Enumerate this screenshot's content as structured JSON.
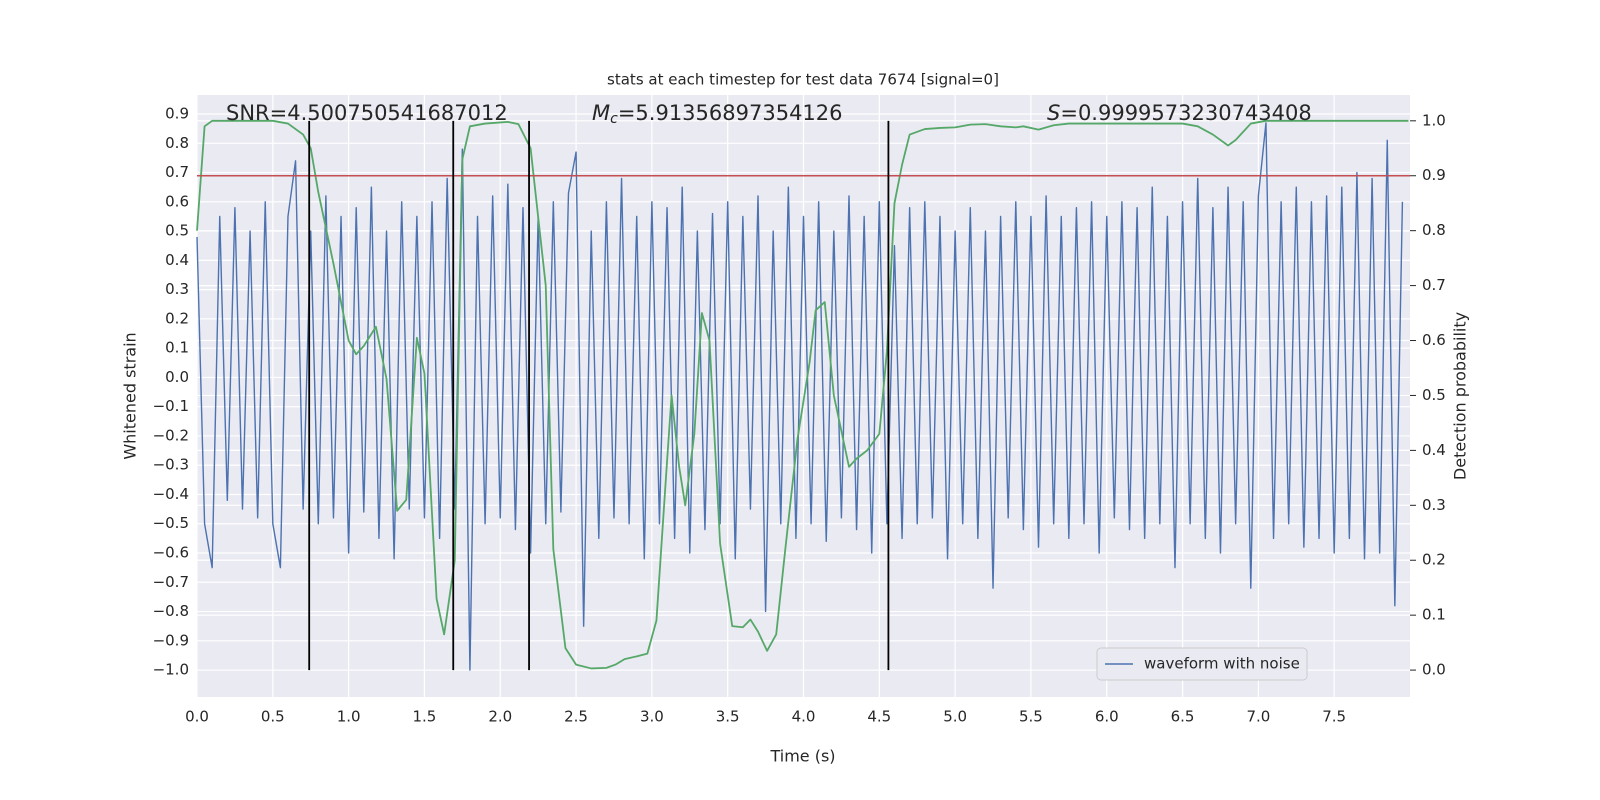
{
  "chart_data": {
    "type": "line",
    "title": "stats at each timestep for test data 7674 [signal=0]",
    "xlabel": "Time (s)",
    "ylabel": "Whitened strain",
    "y2label": "Detection probability",
    "xlim": [
      0,
      8.0
    ],
    "ylim": [
      -1.092,
      0.965
    ],
    "y2lim": [
      -0.049,
      1.047
    ],
    "xticks": [
      {
        "value": 0,
        "label": "0.0"
      },
      0.5,
      {
        "value": 1,
        "label": "1.0"
      },
      1.5,
      {
        "value": 2,
        "label": "2.0"
      },
      2.5,
      {
        "value": 3,
        "label": "3.0"
      },
      3.5,
      {
        "value": 4,
        "label": "4.0"
      },
      4.5,
      {
        "value": 5,
        "label": "5.0"
      },
      5.5,
      {
        "value": 6,
        "label": "6.0"
      },
      6.5,
      {
        "value": 7,
        "label": "7.0"
      },
      7.5
    ],
    "yticks": [
      {
        "value": -1,
        "label": "−1.0"
      },
      {
        "value": -0.9,
        "label": "−0.9"
      },
      {
        "value": -0.8,
        "label": "−0.8"
      },
      {
        "value": -0.7,
        "label": "−0.7"
      },
      {
        "value": -0.6,
        "label": "−0.6"
      },
      {
        "value": -0.5,
        "label": "−0.5"
      },
      {
        "value": -0.4,
        "label": "−0.4"
      },
      {
        "value": -0.3,
        "label": "−0.3"
      },
      {
        "value": -0.2,
        "label": "−0.2"
      },
      {
        "value": -0.1,
        "label": "−0.1"
      },
      {
        "value": 0,
        "label": "0.0"
      },
      0.1,
      0.2,
      0.3,
      0.4,
      0.5,
      0.6,
      0.7,
      0.8,
      0.9
    ],
    "y2ticks": [
      {
        "value": 0,
        "label": "0.0"
      },
      0.1,
      0.2,
      0.3,
      0.4,
      0.5,
      0.6,
      0.7,
      0.8,
      0.9,
      {
        "value": 1,
        "label": "1.0"
      }
    ],
    "grid": true,
    "legend": "lower right",
    "annotations": [
      {
        "text": "SNR=4.500750541687012"
      },
      {
        "symbol": "M",
        "subscript": "c",
        "text": "=5.91356897354126"
      },
      {
        "symbol": "S",
        "text": "=0.9999573230743408"
      }
    ],
    "hlines": [
      {
        "value": 0.9,
        "axis": "y2",
        "color": "#c44e52"
      }
    ],
    "vlines": {
      "values": [
        0.74,
        1.69,
        2.19,
        4.56
      ],
      "axis": "y2",
      "ymin": 0,
      "ymax": 1,
      "color": "#000000"
    },
    "series": [
      {
        "name": "waveform with noise",
        "color": "#4c72b0",
        "x": [
          0,
          0.05,
          0.1,
          0.15,
          0.2,
          0.25,
          0.3,
          0.35,
          0.4,
          0.45,
          0.5,
          0.55,
          0.6,
          0.65,
          0.7,
          0.75,
          0.8,
          0.85,
          0.9,
          0.95,
          1.0,
          1.05,
          1.1,
          1.15,
          1.2,
          1.25,
          1.3,
          1.35,
          1.4,
          1.45,
          1.5,
          1.55,
          1.6,
          1.65,
          1.7,
          1.75,
          1.8,
          1.85,
          1.9,
          1.95,
          2.0,
          2.05,
          2.1,
          2.15,
          2.2,
          2.25,
          2.3,
          2.35,
          2.4,
          2.45,
          2.5,
          2.55,
          2.6,
          2.65,
          2.7,
          2.75,
          2.8,
          2.85,
          2.9,
          2.95,
          3.0,
          3.05,
          3.1,
          3.15,
          3.2,
          3.25,
          3.3,
          3.35,
          3.4,
          3.45,
          3.5,
          3.55,
          3.6,
          3.65,
          3.7,
          3.75,
          3.8,
          3.85,
          3.9,
          3.95,
          4.0,
          4.05,
          4.1,
          4.15,
          4.2,
          4.25,
          4.3,
          4.35,
          4.4,
          4.45,
          4.5,
          4.55,
          4.6,
          4.65,
          4.7,
          4.75,
          4.8,
          4.85,
          4.9,
          4.95,
          5.0,
          5.05,
          5.1,
          5.15,
          5.2,
          5.25,
          5.3,
          5.35,
          5.4,
          5.45,
          5.5,
          5.55,
          5.6,
          5.65,
          5.7,
          5.75,
          5.8,
          5.85,
          5.9,
          5.95,
          6.0,
          6.05,
          6.1,
          6.15,
          6.2,
          6.25,
          6.3,
          6.35,
          6.4,
          6.45,
          6.5,
          6.55,
          6.6,
          6.65,
          6.7,
          6.75,
          6.8,
          6.85,
          6.9,
          6.95,
          7.0,
          7.05,
          7.1,
          7.15,
          7.2,
          7.25,
          7.3,
          7.35,
          7.4,
          7.45,
          7.5,
          7.55,
          7.6,
          7.65,
          7.7,
          7.75,
          7.8,
          7.85,
          7.9,
          7.95
        ],
        "values": [
          0.48,
          -0.5,
          -0.65,
          0.55,
          -0.42,
          0.58,
          -0.45,
          0.5,
          -0.48,
          0.6,
          -0.5,
          -0.65,
          0.55,
          0.74,
          -0.45,
          0.5,
          -0.5,
          0.62,
          -0.48,
          0.55,
          -0.6,
          0.58,
          -0.46,
          0.65,
          -0.55,
          0.5,
          -0.62,
          0.6,
          -0.45,
          0.55,
          -0.48,
          0.6,
          -0.55,
          0.68,
          -0.45,
          0.78,
          -1.0,
          0.55,
          -0.5,
          0.62,
          -0.48,
          0.66,
          -0.52,
          0.58,
          -0.6,
          0.55,
          -0.5,
          0.6,
          -0.46,
          0.63,
          0.77,
          -0.85,
          0.5,
          -0.55,
          0.6,
          -0.48,
          0.68,
          -0.5,
          0.55,
          -0.62,
          0.6,
          -0.5,
          0.58,
          -0.55,
          0.65,
          -0.6,
          0.5,
          -0.52,
          0.56,
          -0.5,
          0.6,
          -0.62,
          0.55,
          -0.45,
          0.62,
          -0.8,
          0.5,
          -0.5,
          0.65,
          -0.55,
          0.55,
          -0.5,
          0.6,
          -0.56,
          0.5,
          -0.48,
          0.62,
          -0.52,
          0.55,
          -0.6,
          0.6,
          -0.5,
          0.45,
          -0.55,
          0.58,
          -0.5,
          0.6,
          -0.48,
          0.55,
          -0.62,
          0.5,
          -0.5,
          0.58,
          -0.55,
          0.5,
          -0.72,
          0.55,
          -0.48,
          0.6,
          -0.52,
          0.55,
          -0.58,
          0.62,
          -0.5,
          0.55,
          -0.55,
          0.58,
          -0.5,
          0.6,
          -0.6,
          0.55,
          -0.48,
          0.6,
          -0.52,
          0.58,
          -0.55,
          0.65,
          -0.5,
          0.55,
          -0.65,
          0.6,
          -0.5,
          0.68,
          -0.55,
          0.58,
          -0.6,
          0.65,
          -0.5,
          0.6,
          -0.72,
          0.62,
          0.87,
          -0.55,
          0.6,
          -0.5,
          0.65,
          -0.58,
          0.6,
          -0.55,
          0.62,
          -0.6,
          0.65,
          -0.55,
          0.7,
          -0.62,
          0.68,
          -0.6,
          0.81,
          -0.78,
          0.6
        ]
      },
      {
        "color": "#55a868",
        "axis": "y2",
        "x": [
          0,
          0.05,
          0.1,
          0.2,
          0.3,
          0.4,
          0.5,
          0.6,
          0.7,
          0.75,
          0.8,
          0.9,
          1.0,
          1.05,
          1.1,
          1.18,
          1.25,
          1.32,
          1.38,
          1.45,
          1.5,
          1.58,
          1.63,
          1.7,
          1.75,
          1.8,
          1.9,
          2.0,
          2.05,
          2.12,
          2.2,
          2.3,
          2.35,
          2.43,
          2.5,
          2.6,
          2.7,
          2.76,
          2.82,
          2.9,
          2.97,
          3.03,
          3.1,
          3.13,
          3.18,
          3.22,
          3.28,
          3.33,
          3.38,
          3.45,
          3.53,
          3.6,
          3.65,
          3.7,
          3.76,
          3.82,
          3.88,
          3.96,
          4.04,
          4.08,
          4.14,
          4.2,
          4.3,
          4.35,
          4.42,
          4.5,
          4.55,
          4.6,
          4.65,
          4.7,
          4.8,
          4.9,
          5.0,
          5.1,
          5.2,
          5.3,
          5.4,
          5.45,
          5.55,
          5.65,
          5.75,
          6.0,
          6.5,
          6.6,
          6.7,
          6.8,
          6.85,
          6.95,
          7.05,
          7.5,
          7.99
        ],
        "values": [
          0.8,
          0.99,
          1.0,
          1.0,
          1.0,
          1.0,
          1.0,
          0.995,
          0.975,
          0.95,
          0.87,
          0.74,
          0.6,
          0.575,
          0.59,
          0.625,
          0.53,
          0.29,
          0.31,
          0.605,
          0.54,
          0.13,
          0.065,
          0.2,
          0.93,
          0.99,
          0.995,
          0.997,
          0.998,
          0.994,
          0.95,
          0.7,
          0.22,
          0.04,
          0.01,
          0.003,
          0.004,
          0.01,
          0.02,
          0.025,
          0.03,
          0.09,
          0.38,
          0.5,
          0.37,
          0.3,
          0.43,
          0.65,
          0.6,
          0.23,
          0.08,
          0.078,
          0.092,
          0.07,
          0.035,
          0.065,
          0.22,
          0.42,
          0.56,
          0.655,
          0.67,
          0.5,
          0.37,
          0.385,
          0.4,
          0.43,
          0.58,
          0.85,
          0.92,
          0.975,
          0.985,
          0.987,
          0.988,
          0.993,
          0.994,
          0.99,
          0.988,
          0.99,
          0.984,
          0.992,
          0.995,
          0.995,
          0.995,
          0.99,
          0.975,
          0.955,
          0.965,
          0.995,
          1.0,
          1.0,
          1.0
        ]
      }
    ]
  }
}
